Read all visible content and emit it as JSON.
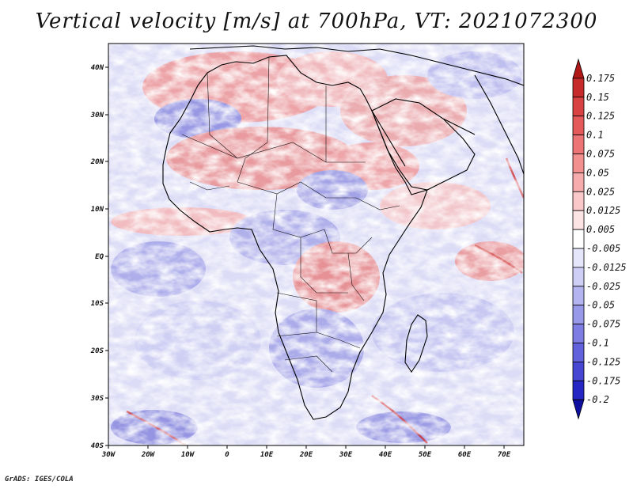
{
  "title": "Vertical velocity [m/s] at 700hPa, VT: 2021072300",
  "credit": "GrADS: IGES/COLA",
  "map": {
    "lon_range": [
      -30,
      75
    ],
    "lat_range": [
      -40,
      45
    ],
    "lon_ticks": [
      "30W",
      "20W",
      "10W",
      "0",
      "10E",
      "20E",
      "30E",
      "40E",
      "50E",
      "60E",
      "70E"
    ],
    "lat_ticks": [
      "40N",
      "30N",
      "20N",
      "10N",
      "EQ",
      "10S",
      "20S",
      "30S",
      "40S"
    ]
  },
  "colorbar": {
    "labels": [
      "0.175",
      "0.15",
      "0.125",
      "0.1",
      "0.075",
      "0.05",
      "0.025",
      "0.0125",
      "0.005",
      "-0.005",
      "-0.0125",
      "-0.025",
      "-0.05",
      "-0.075",
      "-0.1",
      "-0.125",
      "-0.175",
      "-0.2"
    ],
    "colors": [
      "#b01818",
      "#c62a2a",
      "#d84242",
      "#e45a5a",
      "#ec7474",
      "#f29090",
      "#f6acac",
      "#fac8c8",
      "#fde4e4",
      "#ffffff",
      "#e6e6fb",
      "#cfcff6",
      "#b4b4f0",
      "#9999ea",
      "#7d7de4",
      "#6262dc",
      "#4646d2",
      "#2626c4",
      "#1010a0"
    ]
  }
}
